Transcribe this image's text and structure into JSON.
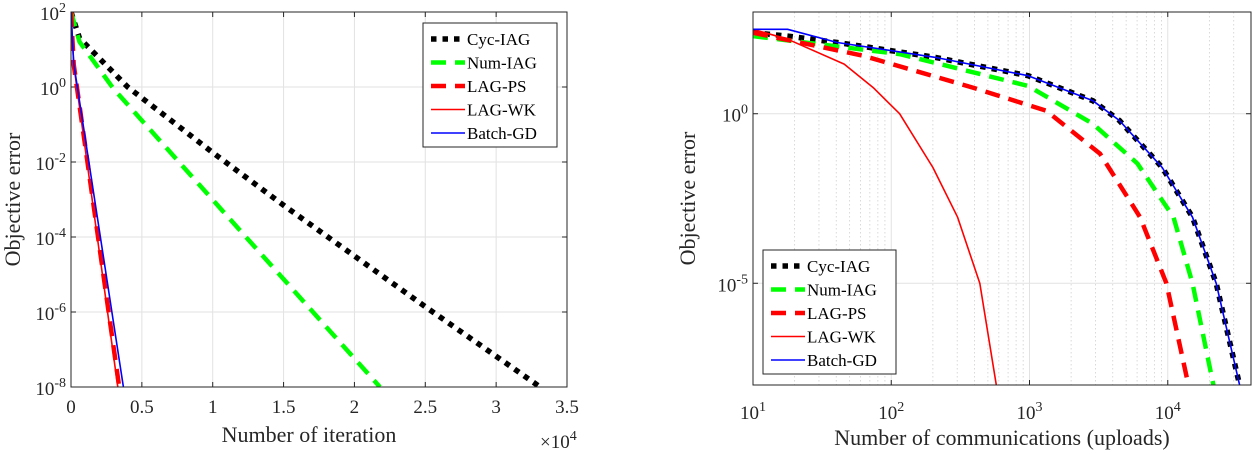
{
  "chart_data": [
    {
      "type": "line",
      "xlabel": "Number of iteration",
      "ylabel": "Objective error",
      "x_multiplier": "×10^4",
      "xscale": "linear",
      "yscale": "log",
      "xlim": [
        0,
        35000
      ],
      "ylim": [
        1e-08,
        100
      ],
      "x_tick_values": [
        0,
        5000,
        10000,
        15000,
        20000,
        25000,
        30000,
        35000
      ],
      "x_tick_labels": [
        "0",
        "0.5",
        "1",
        "1.5",
        "2",
        "2.5",
        "3",
        "3.5"
      ],
      "y_tick_values": [
        100,
        1,
        0.01,
        0.0001,
        1e-06,
        1e-08
      ],
      "y_tick_labels": [
        "10^2",
        "10^0",
        "10^-2",
        "10^-4",
        "10^-6",
        "10^-8"
      ],
      "grid": true,
      "legend_position": "top-right",
      "series": [
        {
          "name": "Cyc-IAG",
          "color": "#000000",
          "style": "dotted",
          "x": [
            0,
            600,
            4000,
            9900,
            15100,
            25100,
            33100
          ],
          "y": [
            100,
            20,
            1,
            0.019,
            0.00066,
            1.3e-06,
            1e-08
          ]
        },
        {
          "name": "Num-IAG",
          "color": "#00ff00",
          "style": "dashed",
          "x": [
            0,
            600,
            3000,
            21800
          ],
          "y": [
            100,
            16,
            0.9,
            1e-08
          ]
        },
        {
          "name": "LAG-PS",
          "color": "#ff0000",
          "style": "dashed",
          "x": [
            0,
            190,
            3400
          ],
          "y": [
            100,
            4,
            1e-08
          ]
        },
        {
          "name": "LAG-WK",
          "color": "#ff0000",
          "style": "solid",
          "x": [
            0,
            190,
            3300
          ],
          "y": [
            100,
            4,
            1e-08
          ]
        },
        {
          "name": "Batch-GD",
          "color": "#0000ff",
          "style": "solid",
          "x": [
            0,
            190,
            3700
          ],
          "y": [
            100,
            4.3,
            1e-08
          ]
        }
      ]
    },
    {
      "type": "line",
      "xlabel": "Number of communications (uploads)",
      "ylabel": "Objective error",
      "xscale": "log",
      "yscale": "log",
      "xlim": [
        10,
        40000
      ],
      "ylim": [
        1e-08,
        1000
      ],
      "x_tick_values": [
        10,
        100,
        1000,
        10000
      ],
      "x_tick_labels": [
        "10^1",
        "10^2",
        "10^3",
        "10^4"
      ],
      "y_tick_values": [
        1,
        1e-05
      ],
      "y_tick_labels": [
        "10^0",
        "10^-5"
      ],
      "grid": true,
      "legend_position": "bottom-left",
      "series": [
        {
          "name": "Cyc-IAG",
          "color": "#000000",
          "style": "dotted",
          "x": [
            10,
            17.8,
            40.7,
            209,
            977,
            2880,
            4470,
            9120,
            15100,
            22400,
            33100
          ],
          "y": [
            245,
            195,
            126,
            45.7,
            13.2,
            2.4,
            0.63,
            0.026,
            0.00089,
            1e-05,
            1e-08
          ]
        },
        {
          "name": "Num-IAG",
          "color": "#00ff00",
          "style": "dashed",
          "x": [
            10,
            115,
            977,
            2880,
            6030,
            11000,
            15100,
            21400
          ],
          "y": [
            195,
            57.5,
            6.6,
            0.5,
            0.034,
            0.00089,
            1e-05,
            1e-08
          ]
        },
        {
          "name": "LAG-PS",
          "color": "#ff0000",
          "style": "dashed",
          "x": [
            10,
            63,
            389,
            1320,
            3240,
            6310,
            9770,
            14100
          ],
          "y": [
            245,
            51,
            5.9,
            1.23,
            0.066,
            0.00089,
            1e-05,
            1e-08
          ]
        },
        {
          "name": "LAG-WK",
          "color": "#ff0000",
          "style": "solid",
          "x": [
            10,
            17.8,
            45.7,
            74,
            115,
            200,
            302,
            437,
            575
          ],
          "y": [
            309,
            158,
            29,
            5.9,
            1,
            0.026,
            0.00089,
            1e-05,
            1e-08
          ]
        },
        {
          "name": "Batch-GD",
          "color": "#0000ff",
          "style": "solid",
          "x": [
            10,
            17.8,
            40.7,
            209,
            977,
            2880,
            4470,
            9120,
            15100,
            22400,
            33100
          ],
          "y": [
            309,
            309,
            126,
            45.7,
            13.2,
            2.4,
            0.63,
            0.026,
            0.00089,
            1e-05,
            1e-08
          ]
        }
      ]
    }
  ]
}
